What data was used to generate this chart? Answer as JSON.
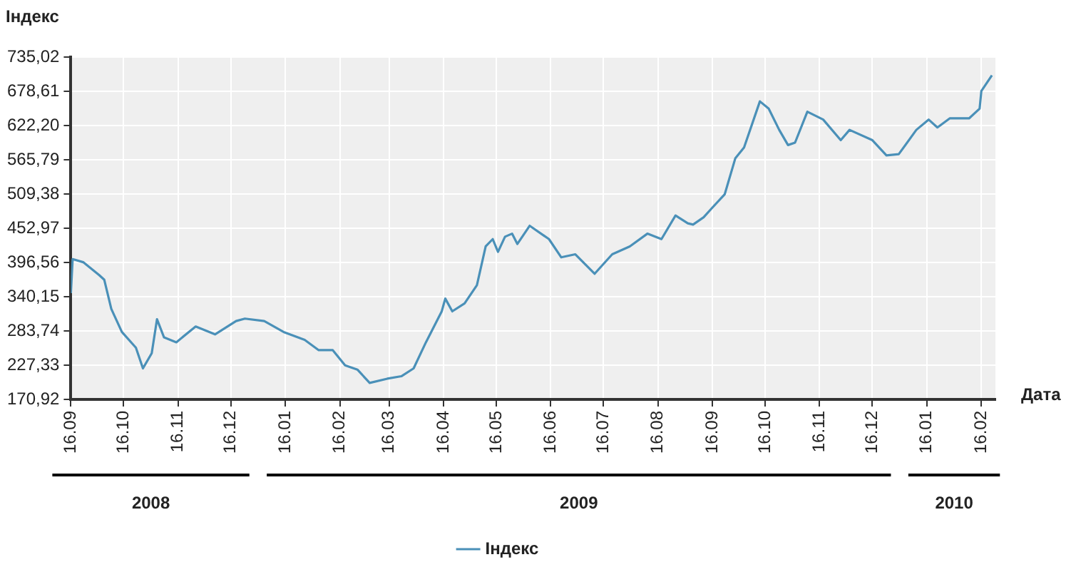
{
  "chart_data": {
    "type": "line",
    "ylabel": "Індекс",
    "xlabel": "Дата",
    "x": [
      "2008-09-16",
      "2008-09-17",
      "2008-09-23",
      "2008-10-02",
      "2008-10-05",
      "2008-10-09",
      "2008-10-15",
      "2008-10-23",
      "2008-10-27",
      "2008-11-01",
      "2008-11-04",
      "2008-11-08",
      "2008-11-15",
      "2008-11-26",
      "2008-12-07",
      "2008-12-19",
      "2008-12-24",
      "2009-01-04",
      "2009-01-15",
      "2009-01-27",
      "2009-02-04",
      "2009-02-12",
      "2009-02-19",
      "2009-02-26",
      "2009-03-05",
      "2009-03-15",
      "2009-03-23",
      "2009-03-30",
      "2009-04-06",
      "2009-04-15",
      "2009-04-17",
      "2009-04-21",
      "2009-04-28",
      "2009-05-05",
      "2009-05-10",
      "2009-05-14",
      "2009-05-17",
      "2009-05-21",
      "2009-05-25",
      "2009-05-28",
      "2009-06-04",
      "2009-06-15",
      "2009-06-22",
      "2009-06-30",
      "2009-07-11",
      "2009-07-21",
      "2009-07-31",
      "2009-08-10",
      "2009-08-18",
      "2009-08-26",
      "2009-09-02",
      "2009-09-05",
      "2009-09-11",
      "2009-09-16",
      "2009-09-23",
      "2009-09-29",
      "2009-10-04",
      "2009-10-13",
      "2009-10-18",
      "2009-10-24",
      "2009-10-29",
      "2009-11-02",
      "2009-11-09",
      "2009-11-18",
      "2009-11-28",
      "2009-12-03",
      "2009-12-16",
      "2009-12-24",
      "2009-12-31",
      "2010-01-10",
      "2010-01-17",
      "2010-01-22",
      "2010-01-29",
      "2010-02-09",
      "2010-02-15",
      "2010-02-16",
      "2010-02-22"
    ],
    "series": [
      {
        "name": "Індекс",
        "color": "#4a90b8",
        "values": [
          346,
          402,
          397,
          376,
          368,
          320,
          282,
          256,
          222,
          247,
          303,
          273,
          265,
          291,
          278,
          300,
          304,
          300,
          282,
          269,
          252,
          252,
          227,
          220,
          198,
          205,
          209,
          222,
          265,
          316,
          337,
          316,
          329,
          359,
          423,
          435,
          414,
          439,
          444,
          427,
          457,
          435,
          405,
          410,
          378,
          410,
          423,
          444,
          435,
          474,
          461,
          459,
          471,
          487,
          509,
          568,
          586,
          662,
          650,
          615,
          590,
          594,
          645,
          632,
          598,
          615,
          598,
          573,
          575,
          615,
          632,
          619,
          634,
          634,
          650,
          679,
          705
        ]
      }
    ],
    "xlim": [
      "2008-09-16",
      "2010-02-24"
    ],
    "xticks": [
      {
        "value": "2008-09-16",
        "label": "16.09"
      },
      {
        "value": "2008-10-16",
        "label": "16.10"
      },
      {
        "value": "2008-11-16",
        "label": "16.11"
      },
      {
        "value": "2008-12-16",
        "label": "16.12"
      },
      {
        "value": "2009-01-16",
        "label": "16.01"
      },
      {
        "value": "2009-02-16",
        "label": "16.02"
      },
      {
        "value": "2009-03-16",
        "label": "16.03"
      },
      {
        "value": "2009-04-16",
        "label": "16.04"
      },
      {
        "value": "2009-05-16",
        "label": "16.05"
      },
      {
        "value": "2009-06-16",
        "label": "16.06"
      },
      {
        "value": "2009-07-16",
        "label": "16.07"
      },
      {
        "value": "2009-08-16",
        "label": "16.08"
      },
      {
        "value": "2009-09-16",
        "label": "16.09"
      },
      {
        "value": "2009-10-16",
        "label": "16.10"
      },
      {
        "value": "2009-11-16",
        "label": "16.11"
      },
      {
        "value": "2009-12-16",
        "label": "16.12"
      },
      {
        "value": "2010-01-16",
        "label": "16.01"
      },
      {
        "value": "2010-02-16",
        "label": "16.02"
      }
    ],
    "ylim": [
      170.92,
      735.02
    ],
    "yticks": [
      {
        "value": 170.92,
        "label": "170,92"
      },
      {
        "value": 227.33,
        "label": "227,33"
      },
      {
        "value": 283.74,
        "label": "283,74"
      },
      {
        "value": 340.15,
        "label": "340,15"
      },
      {
        "value": 396.56,
        "label": "396,56"
      },
      {
        "value": 452.97,
        "label": "452,97"
      },
      {
        "value": 509.38,
        "label": "509,38"
      },
      {
        "value": 565.79,
        "label": "565,79"
      },
      {
        "value": 622.2,
        "label": "622,20"
      },
      {
        "value": 678.61,
        "label": "678,61"
      },
      {
        "value": 735.02,
        "label": "735,02"
      }
    ],
    "annotations": [
      "2008",
      "2009",
      "2010"
    ],
    "grid": true,
    "legend": "bottom",
    "marker": "none",
    "line_style": "solid"
  }
}
